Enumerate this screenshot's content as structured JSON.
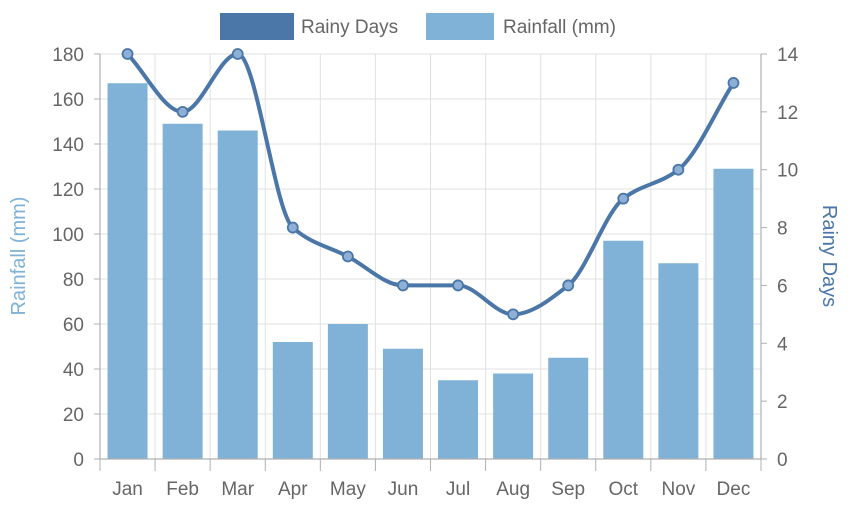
{
  "chart_data": {
    "type": "bar",
    "title": "",
    "categories": [
      "Jan",
      "Feb",
      "Mar",
      "Apr",
      "May",
      "Jun",
      "Jul",
      "Aug",
      "Sep",
      "Oct",
      "Nov",
      "Dec"
    ],
    "series": [
      {
        "name": "Rainy Days",
        "type": "line",
        "axis": "right",
        "color": "#4a76a8",
        "values": [
          14,
          12,
          14,
          8,
          7,
          6,
          6,
          5,
          6,
          9,
          10,
          13
        ]
      },
      {
        "name": "Rainfall (mm)",
        "type": "bar",
        "axis": "left",
        "color": "#7fb2d6",
        "values": [
          167,
          149,
          146,
          52,
          60,
          49,
          35,
          38,
          45,
          97,
          87,
          129
        ]
      }
    ],
    "y_left": {
      "label": "Rainfall (mm)",
      "color": "#7fb2d6",
      "range": [
        0,
        180
      ],
      "ticks": [
        "0",
        "20",
        "40",
        "60",
        "80",
        "100",
        "120",
        "140",
        "160",
        "180"
      ]
    },
    "y_right": {
      "label": "Rainy Days",
      "color": "#4a76a8",
      "range": [
        0,
        14
      ],
      "ticks": [
        "0",
        "2",
        "4",
        "6",
        "8",
        "10",
        "12",
        "14"
      ]
    },
    "grid": true,
    "legend_position": "top-center"
  }
}
